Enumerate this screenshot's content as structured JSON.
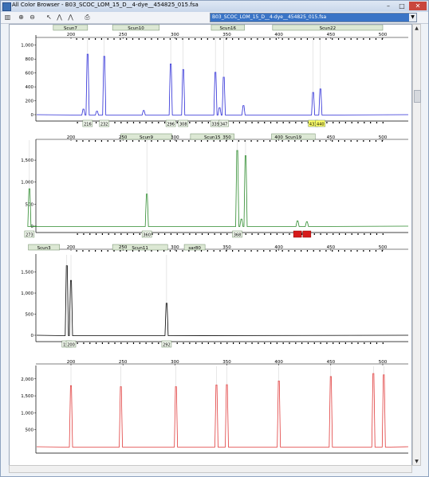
{
  "window": {
    "title": "All Color Browser - B03_SCOC_LOM_15_D__4-dye__454825_015.fsa"
  },
  "toolbar": {
    "file_select": "B03_SCOC_LOM_15_D__4-dye__454825_015.fsa",
    "buttons": [
      "panel-icon",
      "zoom-in-icon",
      "zoom-out-icon",
      "cursor-icon",
      "peak-icon",
      "label-peak-icon",
      "print-icon"
    ]
  },
  "colors": {
    "blue": "#2b2bd6",
    "green": "#2c8a2c",
    "black": "#000000",
    "red": "#e03c3c",
    "marker_box": "#dce8d4",
    "highlight_yellow": "#ffff66",
    "flag_red": "#d61a1a"
  },
  "panels": [
    {
      "dye": "blue",
      "x_ticks": [
        "200",
        "250",
        "300",
        "350",
        "400",
        "450",
        "500"
      ],
      "y_ticks": [
        "1,000",
        "800",
        "600",
        "400",
        "200",
        "0"
      ],
      "markers": [
        "Scun7",
        "Scun10",
        "Scun16",
        "Scun22"
      ],
      "peaks": [
        {
          "x": 216,
          "y": 870
        },
        {
          "x": 232,
          "y": 840
        },
        {
          "x": 296,
          "y": 730
        },
        {
          "x": 308,
          "y": 650
        },
        {
          "x": 339,
          "y": 610
        },
        {
          "x": 347,
          "y": 540
        },
        {
          "x": 433,
          "y": 320
        },
        {
          "x": 440,
          "y": 370
        },
        {
          "x": 212,
          "y": 80
        },
        {
          "x": 225,
          "y": 50
        },
        {
          "x": 270,
          "y": 60
        },
        {
          "x": 343,
          "y": 100
        },
        {
          "x": 366,
          "y": 130
        }
      ],
      "labels": [
        "216",
        "232",
        "296",
        "308",
        "339",
        "347",
        "433",
        "440"
      ],
      "highlight_labels": [
        "433",
        "440"
      ]
    },
    {
      "dye": "green",
      "x_ticks": [
        "200",
        "250",
        "300",
        "350",
        "400",
        "450",
        "500"
      ],
      "y_ticks": [
        "1,500",
        "1,000",
        "500",
        "0"
      ],
      "markers": [
        "Scun9",
        "Scun15",
        "Scun19"
      ],
      "peaks": [
        {
          "x": 160,
          "y": 850
        },
        {
          "x": 273,
          "y": 730
        },
        {
          "x": 360,
          "y": 1720
        },
        {
          "x": 368,
          "y": 1600
        },
        {
          "x": 418,
          "y": 120
        },
        {
          "x": 427,
          "y": 100
        },
        {
          "x": 364,
          "y": 160
        }
      ],
      "labels": [
        "273",
        "360",
        "368"
      ],
      "flagged_labels": [
        "",
        ""
      ]
    },
    {
      "dye": "black",
      "x_ticks": [
        "200",
        "250",
        "300",
        "350",
        "400",
        "450",
        "500"
      ],
      "y_ticks": [
        "1,500",
        "1,000",
        "500",
        "0"
      ],
      "markers": [
        "Scun3",
        "Scun11",
        "sar80"
      ],
      "peaks": [
        {
          "x": 196,
          "y": 1650
        },
        {
          "x": 200,
          "y": 1300
        },
        {
          "x": 292,
          "y": 760
        }
      ],
      "labels": [
        "196",
        "200",
        "292"
      ]
    },
    {
      "dye": "red",
      "x_ticks": [
        "200",
        "250",
        "300",
        "350",
        "400",
        "450",
        "500"
      ],
      "y_ticks": [
        "2,000",
        "1,500",
        "1,000",
        "500"
      ],
      "markers": [],
      "peaks": [
        {
          "x": 200,
          "y": 1800
        },
        {
          "x": 248,
          "y": 1770
        },
        {
          "x": 301,
          "y": 1770
        },
        {
          "x": 340,
          "y": 1820
        },
        {
          "x": 350,
          "y": 1830
        },
        {
          "x": 400,
          "y": 1940
        },
        {
          "x": 450,
          "y": 2070
        },
        {
          "x": 491,
          "y": 2160
        },
        {
          "x": 501,
          "y": 2120
        }
      ],
      "labels": []
    }
  ]
}
